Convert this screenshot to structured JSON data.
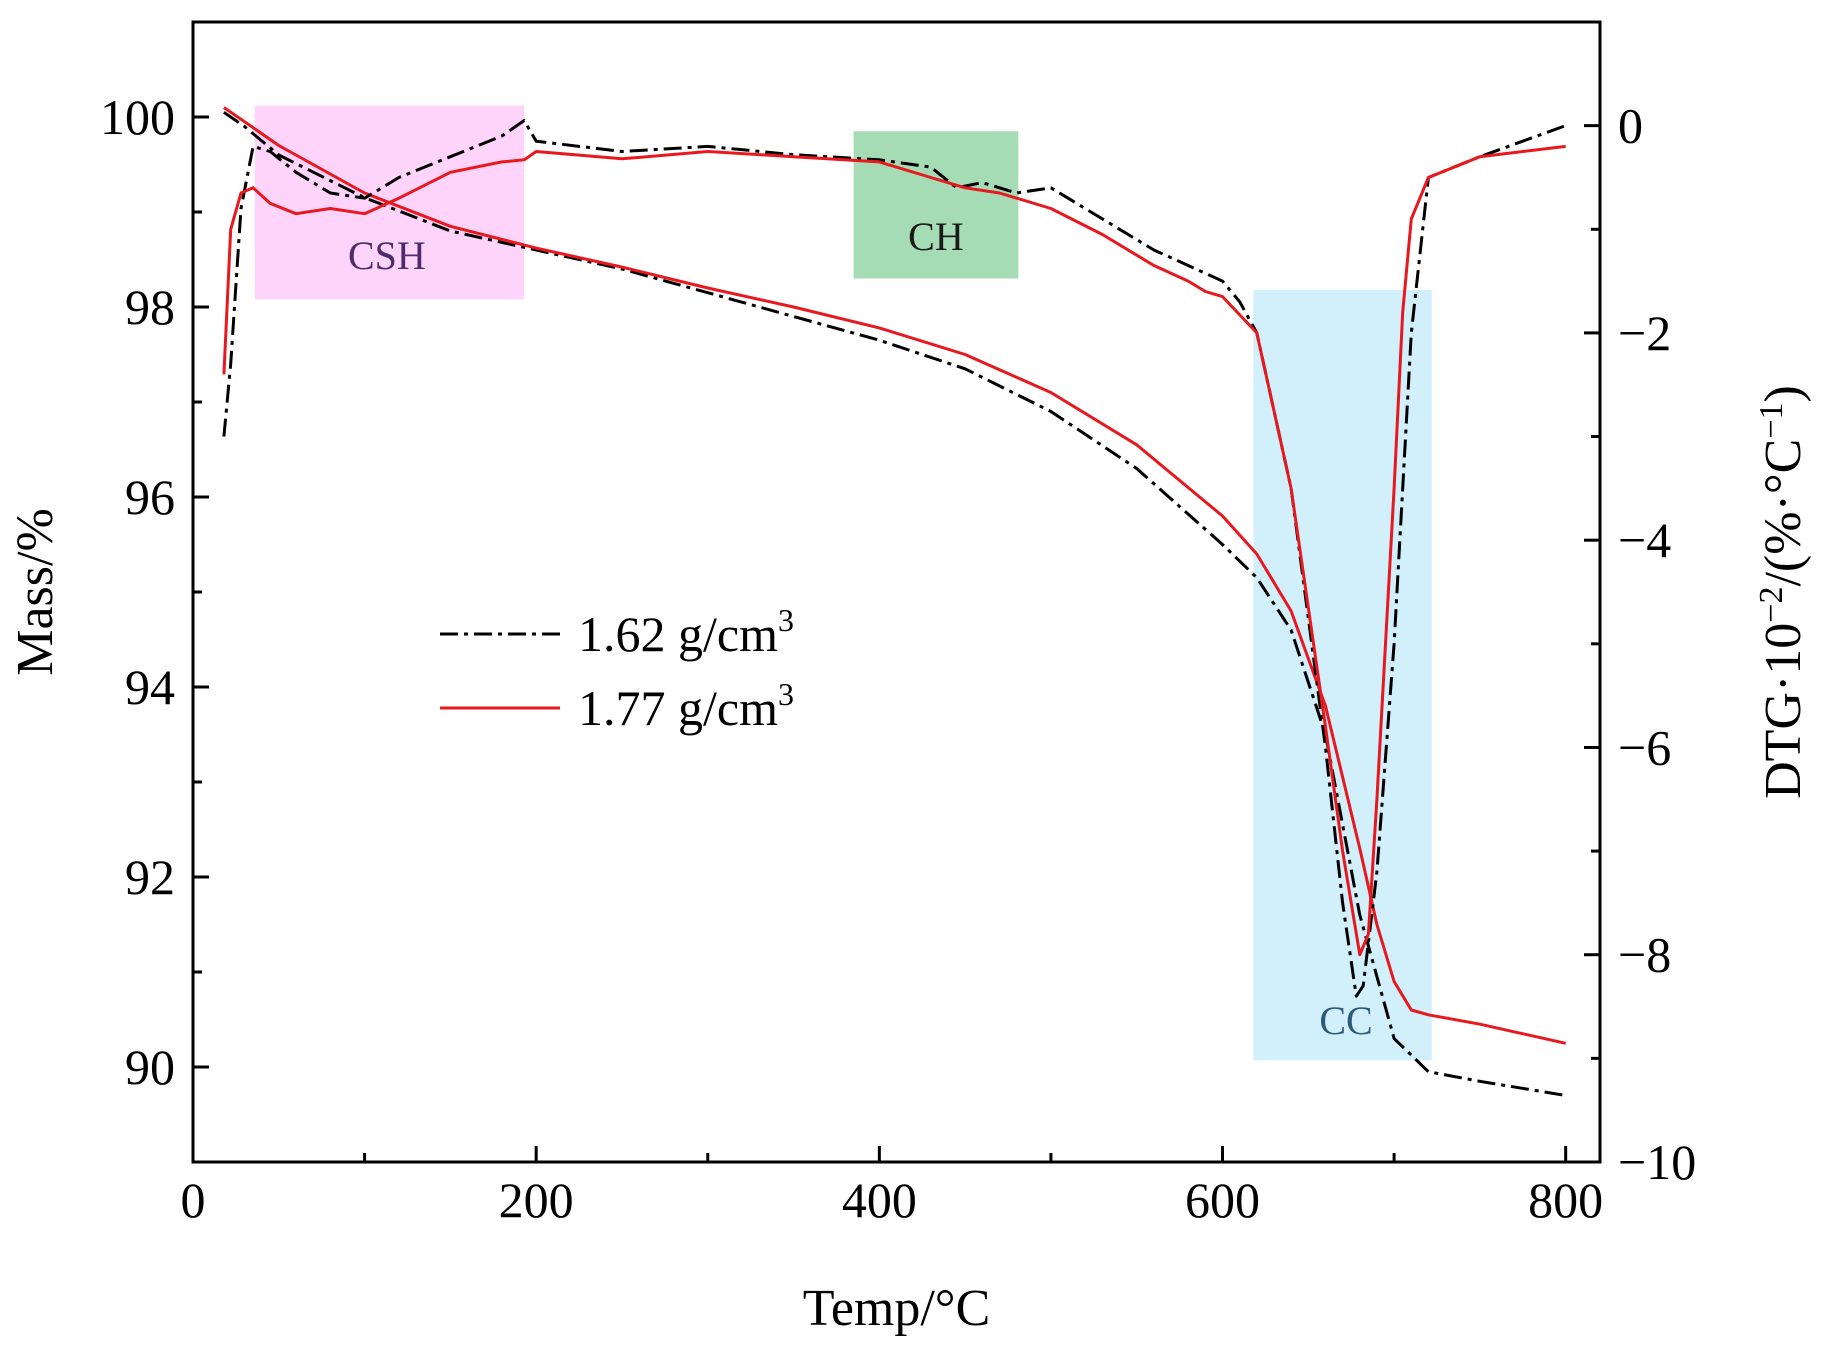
{
  "chart_data": {
    "type": "line",
    "xlabel": "Temp/°C",
    "ylabel_left": "Mass/%",
    "ylabel_right_parts": [
      "DTG·10",
      "−2",
      "/(%·°C",
      "−1",
      ")"
    ],
    "x_range": [
      0,
      820
    ],
    "y_left_range": [
      89,
      101
    ],
    "y_right_range": [
      -10,
      1
    ],
    "x_ticks": [
      0,
      200,
      400,
      600,
      800
    ],
    "x_tick_labels": [
      "0",
      "200",
      "400",
      "600",
      "800"
    ],
    "y_left_ticks": [
      90,
      92,
      94,
      96,
      98,
      100
    ],
    "y_left_tick_labels": [
      "90",
      "92",
      "94",
      "96",
      "98",
      "100"
    ],
    "y_right_ticks": [
      -10,
      -8,
      -6,
      -4,
      -2,
      0
    ],
    "y_right_tick_labels": [
      "−10",
      "−8",
      "−6",
      "−4",
      "−2",
      "0"
    ],
    "regions": [
      {
        "label": "CSH",
        "x": [
          36,
          193
        ],
        "y_left": [
          98.08,
          100.12
        ],
        "fill": "#ff66ee",
        "opacity": 0.28,
        "text_color": "#4b2c6e",
        "label_at": [
          113,
          98.4
        ]
      },
      {
        "label": "CH",
        "x": [
          385,
          481
        ],
        "y_left": [
          98.3,
          99.85
        ],
        "fill": "#5cbf78",
        "opacity": 0.55,
        "text_color": "#1a1a1a",
        "label_at": [
          433,
          98.6
        ]
      },
      {
        "label": "CC",
        "x": [
          618,
          722
        ],
        "y_left": [
          90.07,
          98.18
        ],
        "fill": "#7fd0f5",
        "opacity": 0.35,
        "text_color": "#2d5a7a",
        "label_at": [
          672,
          90.35
        ]
      }
    ],
    "legend": [
      {
        "name": "1.62 g/cm",
        "sup": "3",
        "color": "#000000",
        "dash": "dashdot"
      },
      {
        "name": "1.77 g/cm",
        "sup": "3",
        "color": "#e8191e",
        "dash": "solid"
      }
    ],
    "series": [
      {
        "name": "1.62 g/cm3 TG",
        "axis": "left",
        "color": "#000000",
        "dash": "dashdot",
        "x": [
          18,
          30,
          50,
          100,
          150,
          200,
          250,
          300,
          350,
          400,
          450,
          500,
          550,
          600,
          620,
          640,
          660,
          680,
          700,
          720,
          750,
          800
        ],
        "y": [
          100.05,
          99.9,
          99.6,
          99.15,
          98.8,
          98.6,
          98.4,
          98.15,
          97.9,
          97.65,
          97.35,
          96.9,
          96.3,
          95.5,
          95.15,
          94.6,
          93.5,
          91.6,
          90.3,
          89.95,
          89.85,
          89.7
        ]
      },
      {
        "name": "1.77 g/cm3 TG",
        "axis": "left",
        "color": "#e8191e",
        "dash": "solid",
        "x": [
          18,
          30,
          50,
          100,
          150,
          200,
          250,
          300,
          350,
          400,
          450,
          500,
          550,
          600,
          620,
          640,
          660,
          680,
          690,
          700,
          710,
          720,
          750,
          800
        ],
        "y": [
          100.1,
          99.95,
          99.7,
          99.2,
          98.85,
          98.62,
          98.42,
          98.2,
          98.0,
          97.78,
          97.5,
          97.1,
          96.55,
          95.8,
          95.4,
          94.8,
          93.8,
          92.3,
          91.5,
          90.9,
          90.6,
          90.55,
          90.45,
          90.25
        ]
      },
      {
        "name": "1.62 g/cm3 DTG",
        "axis": "right",
        "color": "#000000",
        "dash": "dashdot",
        "x": [
          18,
          22,
          28,
          35,
          45,
          60,
          80,
          100,
          120,
          150,
          180,
          193,
          200,
          250,
          300,
          350,
          400,
          430,
          445,
          460,
          480,
          500,
          530,
          560,
          580,
          600,
          610,
          620,
          640,
          660,
          670,
          678,
          682,
          690,
          700,
          710,
          720,
          750,
          800
        ],
        "y": [
          -3.0,
          -2.3,
          -0.8,
          -0.2,
          -0.25,
          -0.45,
          -0.65,
          -0.7,
          -0.5,
          -0.3,
          -0.1,
          0.05,
          -0.15,
          -0.25,
          -0.2,
          -0.28,
          -0.33,
          -0.4,
          -0.6,
          -0.55,
          -0.65,
          -0.6,
          -0.9,
          -1.2,
          -1.35,
          -1.5,
          -1.7,
          -2.0,
          -3.5,
          -6.0,
          -7.5,
          -8.4,
          -8.3,
          -7.2,
          -5.0,
          -2.0,
          -0.5,
          -0.3,
          0.0
        ]
      },
      {
        "name": "1.77 g/cm3 DTG",
        "axis": "right",
        "color": "#e8191e",
        "dash": "solid",
        "x": [
          18,
          22,
          28,
          35,
          45,
          60,
          80,
          100,
          120,
          150,
          180,
          193,
          200,
          250,
          300,
          350,
          400,
          430,
          450,
          470,
          500,
          530,
          560,
          580,
          590,
          600,
          620,
          640,
          660,
          670,
          680,
          685,
          690,
          700,
          705,
          710,
          720,
          750,
          800
        ],
        "y": [
          -2.4,
          -1.0,
          -0.65,
          -0.6,
          -0.75,
          -0.85,
          -0.8,
          -0.85,
          -0.7,
          -0.45,
          -0.35,
          -0.33,
          -0.25,
          -0.32,
          -0.25,
          -0.3,
          -0.35,
          -0.5,
          -0.6,
          -0.65,
          -0.8,
          -1.05,
          -1.35,
          -1.5,
          -1.6,
          -1.65,
          -2.0,
          -3.5,
          -5.8,
          -7.0,
          -8.0,
          -7.8,
          -6.5,
          -3.5,
          -1.8,
          -0.9,
          -0.5,
          -0.3,
          -0.2
        ]
      }
    ]
  }
}
